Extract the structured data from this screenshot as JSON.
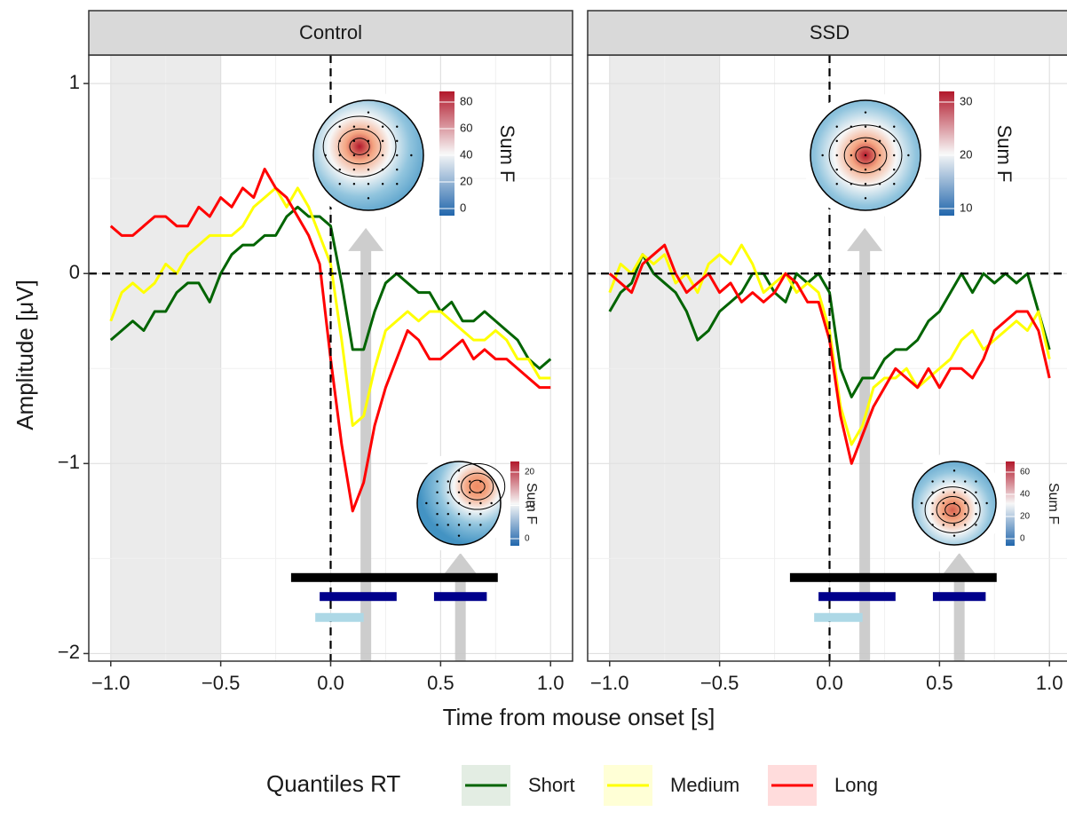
{
  "chart_data": {
    "type": "line",
    "xlabel": "Time from mouse onset [s]",
    "ylabel": "Amplitude [μV]",
    "legend_title": "Quantiles RT",
    "xlim": [
      -1.1,
      1.1
    ],
    "ylim": [
      -2.04,
      1.15
    ],
    "xticks": [
      {
        "value": -1,
        "label": "−1.0"
      },
      {
        "value": -0.5,
        "label": "−0.5"
      },
      {
        "value": 0,
        "label": "0.0"
      },
      {
        "value": 0.5,
        "label": "0.5"
      },
      {
        "value": 1,
        "label": "1.0"
      }
    ],
    "yticks": [
      {
        "value": -2,
        "label": "−2"
      },
      {
        "value": -1,
        "label": "−1"
      },
      0,
      1
    ],
    "grid": true,
    "baseline_shade": [
      -1,
      -0.5
    ],
    "x": [
      -1,
      -0.95,
      -0.9,
      -0.85,
      -0.8,
      -0.75,
      -0.7,
      -0.65,
      -0.6,
      -0.55,
      -0.5,
      -0.45,
      -0.4,
      -0.35,
      -0.3,
      -0.25,
      -0.2,
      -0.15,
      -0.1,
      -0.05,
      0,
      0.05,
      0.1,
      0.15,
      0.2,
      0.25,
      0.3,
      0.35,
      0.4,
      0.45,
      0.5,
      0.55,
      0.6,
      0.65,
      0.7,
      0.75,
      0.8,
      0.85,
      0.9,
      0.95,
      1
    ],
    "facets": [
      {
        "title": "Control",
        "series": [
          {
            "name": "Short",
            "color": "#006400",
            "values": [
              -0.35,
              -0.3,
              -0.25,
              -0.3,
              -0.2,
              -0.2,
              -0.1,
              -0.05,
              -0.05,
              -0.15,
              0,
              0.1,
              0.15,
              0.15,
              0.2,
              0.2,
              0.3,
              0.35,
              0.3,
              0.3,
              0.25,
              -0.05,
              -0.4,
              -0.4,
              -0.2,
              -0.05,
              0,
              -0.05,
              -0.1,
              -0.1,
              -0.2,
              -0.15,
              -0.25,
              -0.25,
              -0.2,
              -0.25,
              -0.3,
              -0.35,
              -0.45,
              -0.5,
              -0.45
            ]
          },
          {
            "name": "Medium",
            "color": "#ffff00",
            "values": [
              -0.25,
              -0.1,
              -0.05,
              -0.1,
              -0.05,
              0.05,
              0,
              0.1,
              0.15,
              0.2,
              0.2,
              0.2,
              0.25,
              0.35,
              0.4,
              0.45,
              0.35,
              0.45,
              0.35,
              0.2,
              0.05,
              -0.35,
              -0.8,
              -0.75,
              -0.5,
              -0.3,
              -0.25,
              -0.2,
              -0.25,
              -0.2,
              -0.2,
              -0.25,
              -0.3,
              -0.35,
              -0.35,
              -0.3,
              -0.35,
              -0.45,
              -0.45,
              -0.55,
              -0.55
            ]
          },
          {
            "name": "Long",
            "color": "#ff0000",
            "values": [
              0.25,
              0.2,
              0.2,
              0.25,
              0.3,
              0.3,
              0.25,
              0.25,
              0.35,
              0.3,
              0.4,
              0.35,
              0.45,
              0.4,
              0.55,
              0.45,
              0.4,
              0.3,
              0.2,
              0.05,
              -0.45,
              -0.9,
              -1.25,
              -1.1,
              -0.8,
              -0.6,
              -0.45,
              -0.3,
              -0.35,
              -0.45,
              -0.45,
              -0.4,
              -0.35,
              -0.45,
              -0.4,
              -0.45,
              -0.45,
              -0.5,
              -0.55,
              -0.6,
              -0.6
            ]
          }
        ],
        "bars": [
          {
            "x": [
              -0.18,
              0.76
            ],
            "y": -1.6,
            "color": "#000000"
          },
          {
            "x": [
              -0.05,
              0.3
            ],
            "y": -1.7,
            "color": "#00008b"
          },
          {
            "x": [
              0.47,
              0.71
            ],
            "y": -1.7,
            "color": "#00008b"
          },
          {
            "x": [
              -0.07,
              0.15
            ],
            "y": -1.81,
            "color": "#add8e6"
          }
        ],
        "arrows": [
          {
            "x": 0.16,
            "y": 0.24
          },
          {
            "x": 0.59,
            "y": -1.47
          }
        ],
        "topomaps": [
          {
            "title": "Sum F",
            "ticks": [
              0,
              20,
              40,
              60,
              80
            ]
          },
          {
            "title": "Sum F",
            "ticks": [
              0,
              10,
              20
            ]
          }
        ]
      },
      {
        "title": "SSD",
        "series": [
          {
            "name": "Short",
            "color": "#006400",
            "values": [
              -0.2,
              -0.1,
              -0.05,
              0.1,
              0,
              -0.05,
              -0.1,
              -0.2,
              -0.35,
              -0.3,
              -0.2,
              -0.15,
              -0.1,
              0,
              0,
              -0.1,
              -0.15,
              0,
              -0.05,
              0,
              -0.1,
              -0.5,
              -0.65,
              -0.55,
              -0.55,
              -0.45,
              -0.4,
              -0.4,
              -0.35,
              -0.25,
              -0.2,
              -0.1,
              0,
              -0.1,
              0,
              -0.05,
              0,
              -0.05,
              0,
              -0.2,
              -0.4
            ]
          },
          {
            "name": "Medium",
            "color": "#ffff00",
            "values": [
              -0.1,
              0.05,
              0,
              0.1,
              0.05,
              0.1,
              -0.05,
              0,
              -0.1,
              0.05,
              0.1,
              0.05,
              0.15,
              0.05,
              -0.1,
              -0.05,
              0,
              -0.1,
              -0.05,
              -0.1,
              -0.3,
              -0.7,
              -0.9,
              -0.8,
              -0.6,
              -0.55,
              -0.55,
              -0.5,
              -0.6,
              -0.55,
              -0.5,
              -0.45,
              -0.35,
              -0.3,
              -0.4,
              -0.35,
              -0.3,
              -0.25,
              -0.3,
              -0.2,
              -0.45
            ]
          },
          {
            "name": "Long",
            "color": "#ff0000",
            "values": [
              0,
              -0.05,
              -0.1,
              0.05,
              0.1,
              0.15,
              0,
              -0.1,
              -0.05,
              0,
              -0.1,
              -0.05,
              -0.15,
              -0.1,
              -0.15,
              -0.1,
              0,
              -0.05,
              -0.15,
              -0.15,
              -0.35,
              -0.75,
              -1,
              -0.85,
              -0.7,
              -0.6,
              -0.5,
              -0.55,
              -0.6,
              -0.5,
              -0.6,
              -0.5,
              -0.5,
              -0.55,
              -0.45,
              -0.3,
              -0.25,
              -0.2,
              -0.2,
              -0.3,
              -0.55
            ]
          }
        ],
        "bars": [
          {
            "x": [
              -0.18,
              0.76
            ],
            "y": -1.6,
            "color": "#000000"
          },
          {
            "x": [
              -0.05,
              0.3
            ],
            "y": -1.7,
            "color": "#00008b"
          },
          {
            "x": [
              0.47,
              0.71
            ],
            "y": -1.7,
            "color": "#00008b"
          },
          {
            "x": [
              -0.07,
              0.15
            ],
            "y": -1.81,
            "color": "#add8e6"
          }
        ],
        "arrows": [
          {
            "x": 0.16,
            "y": 0.24
          },
          {
            "x": 0.59,
            "y": -1.47
          }
        ],
        "topomaps": [
          {
            "title": "Sum F",
            "ticks": [
              10,
              20,
              30
            ]
          },
          {
            "title": "Sum F",
            "ticks": [
              0,
              20,
              40,
              60
            ]
          }
        ]
      }
    ]
  }
}
